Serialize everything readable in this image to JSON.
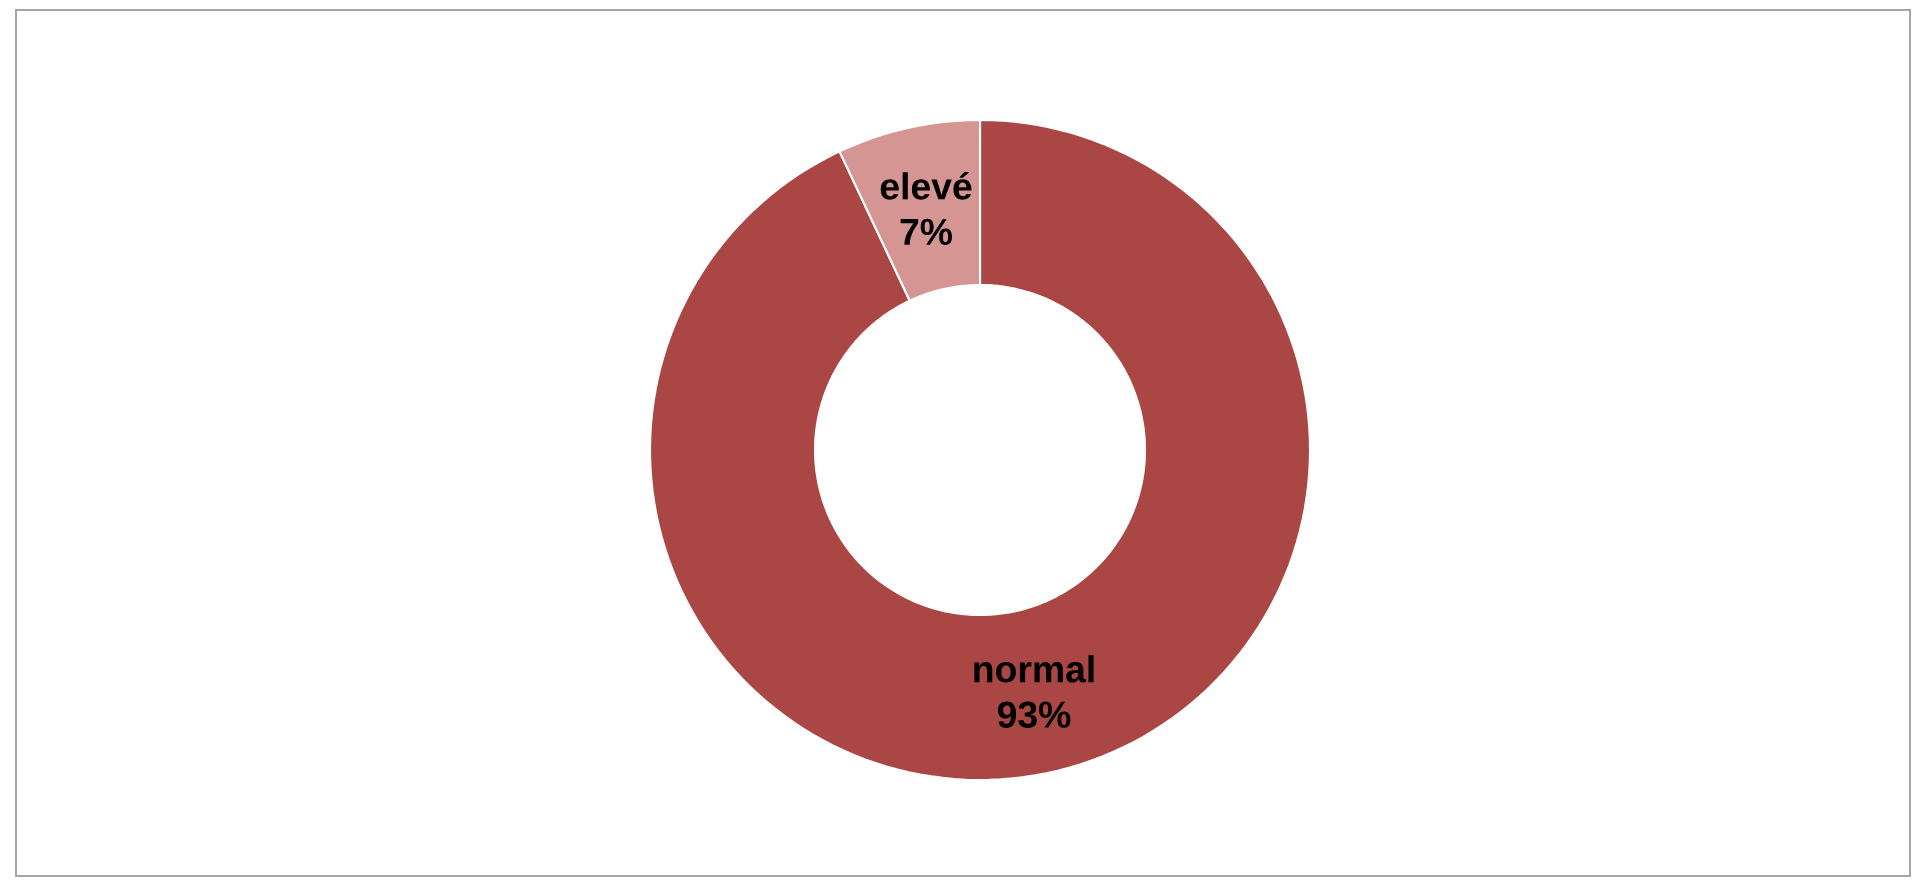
{
  "chart_data": {
    "type": "donut",
    "categories": [
      "normal",
      "elevé"
    ],
    "values": [
      93,
      7
    ],
    "colors": [
      "#aa4643",
      "#d49593"
    ],
    "value_labels": [
      "93%",
      "7%"
    ]
  }
}
